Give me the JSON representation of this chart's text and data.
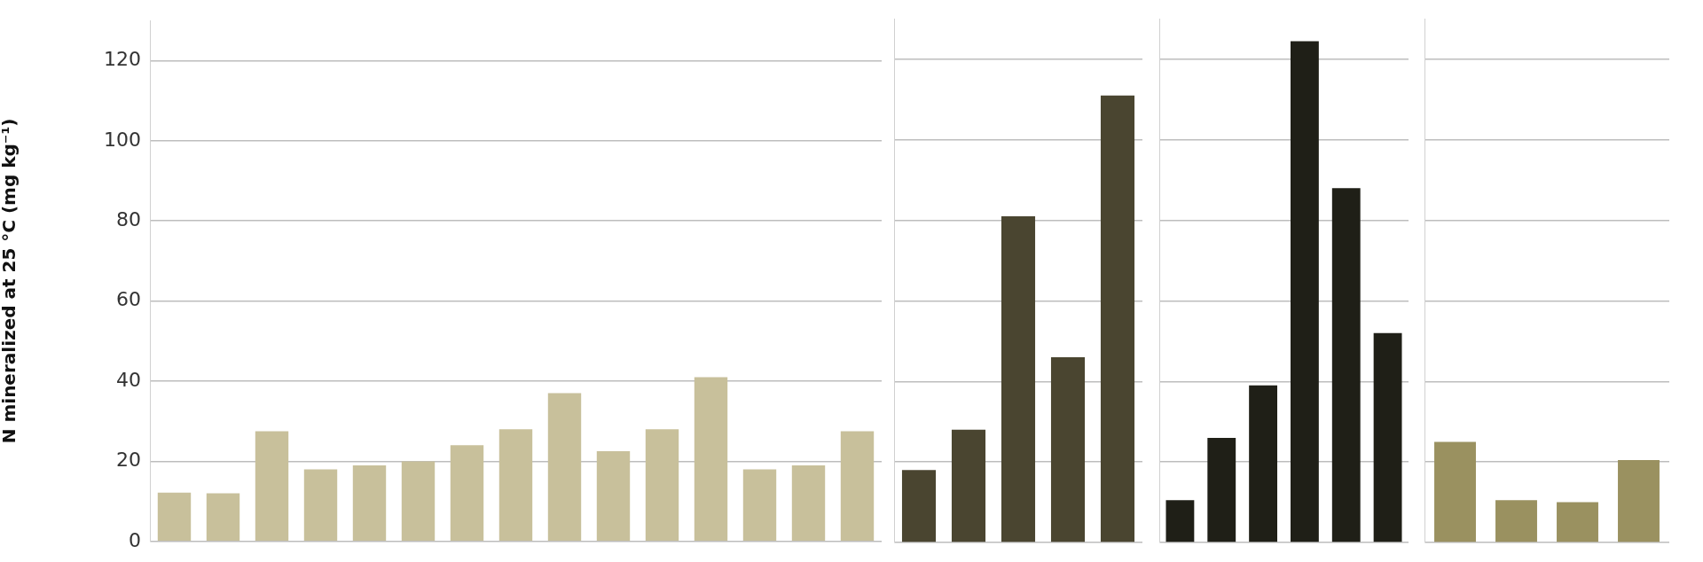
{
  "chart_data": [
    {
      "type": "bar",
      "ylabel": "N mineralized at 25 °C (mg kg⁻¹)",
      "categories": [
        null,
        null,
        null,
        null,
        null,
        null,
        null,
        null,
        null,
        null,
        null,
        null,
        null,
        null,
        null
      ],
      "values": [
        12.2,
        12,
        27.5,
        18,
        19,
        20,
        24,
        28,
        37,
        22.5,
        28,
        41,
        18,
        19,
        27.5
      ],
      "color": "#c8c09b",
      "ylim": [
        0,
        130
      ],
      "yticks": [
        0,
        20,
        40,
        60,
        80,
        100,
        120
      ],
      "grid": "y",
      "tick_labels": "y"
    },
    {
      "type": "bar",
      "categories": [
        null,
        null,
        null,
        null,
        null
      ],
      "values": [
        18,
        28,
        81,
        46,
        111
      ],
      "color": "#4a4530",
      "ylim": [
        0,
        130
      ],
      "yticks": [
        0,
        20,
        40,
        60,
        80,
        100,
        120
      ],
      "grid": "y",
      "tick_labels": false
    },
    {
      "type": "bar",
      "categories": [
        null,
        null,
        null,
        null,
        null,
        null
      ],
      "values": [
        10.5,
        26,
        39,
        124.5,
        88,
        52
      ],
      "color": "#1f1f17",
      "ylim": [
        0,
        130
      ],
      "yticks": [
        0,
        20,
        40,
        60,
        80,
        100,
        120
      ],
      "grid": "y",
      "tick_labels": false
    },
    {
      "type": "bar",
      "categories": [
        null,
        null,
        null,
        null
      ],
      "values": [
        25,
        10.5,
        10,
        20.5
      ],
      "color": "#9a9160",
      "ylim": [
        0,
        130
      ],
      "yticks": [
        0,
        20,
        40,
        60,
        80,
        100,
        120
      ],
      "grid": "y",
      "tick_labels": false
    }
  ]
}
